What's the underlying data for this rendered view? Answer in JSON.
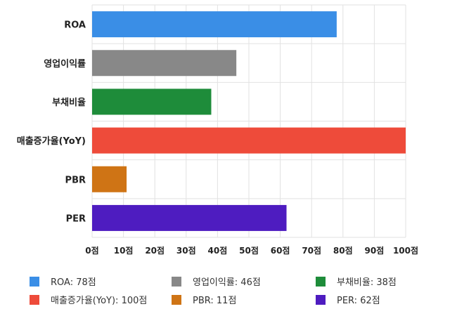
{
  "chart_data": {
    "type": "bar",
    "orientation": "horizontal",
    "categories": [
      "ROA",
      "영업이익률",
      "부채비율",
      "매출증가율(YoY)",
      "PBR",
      "PER"
    ],
    "values": [
      78,
      46,
      38,
      100,
      11,
      62
    ],
    "colors": [
      "#3a8ee6",
      "#888888",
      "#1e8c3a",
      "#ee4b3a",
      "#cf7415",
      "#4e1cc0"
    ],
    "xlim": [
      0,
      100
    ],
    "xticks": [
      0,
      10,
      20,
      30,
      40,
      50,
      60,
      70,
      80,
      90,
      100
    ],
    "tick_suffix": "점",
    "grid": true,
    "legend_position": "bottom",
    "legend": [
      "ROA: 78점",
      "영업이익률: 46점",
      "부채비율: 38점",
      "매출증가율(YoY): 100점",
      "PBR: 11점",
      "PER: 62점"
    ]
  }
}
